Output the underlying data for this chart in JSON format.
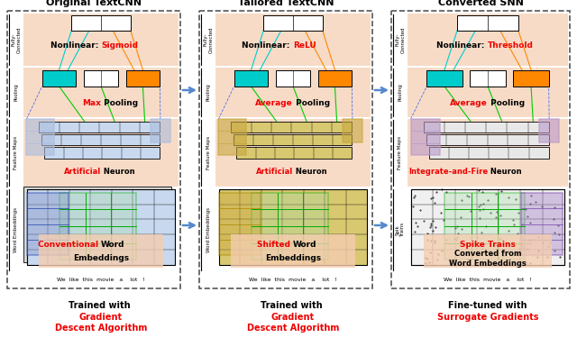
{
  "panels": [
    {
      "title": "Original TextCNN",
      "fc_keyword": "Sigmoid",
      "pool_keyword": "Max",
      "neuron_keyword": "Artificial",
      "embed_keyword": "Conventional",
      "embed_suffix": "Word\nEmbeddings",
      "embed_color": "#c8d8ee",
      "feature_highlight_color": "#aabcde",
      "bottom_line1": "Trained with ",
      "bottom_line1_red": "",
      "bottom_line2_red": "Gradient",
      "bottom_line3_red": "Descent",
      "bottom_line3_black": " Algorithm",
      "side_labels": [
        "Fully-\nConnected",
        "Pooling",
        "Feature Maps",
        "Word Embeddings"
      ]
    },
    {
      "title": "Tailored TextCNN",
      "fc_keyword": "ReLU",
      "pool_keyword": "Average",
      "neuron_keyword": "Artificial",
      "embed_keyword": "Shifted",
      "embed_suffix": "Word\nEmbeddings",
      "embed_color": "#d8c870",
      "feature_highlight_color": "#c8a840",
      "bottom_line1": "Trained with ",
      "bottom_line1_red": "",
      "bottom_line2_red": "Gradient",
      "bottom_line3_red": "Descent",
      "bottom_line3_black": " Algorithm",
      "side_labels": [
        "Fully-\nConnected",
        "Pooling",
        "Feature Maps",
        "Word Embeddings"
      ]
    },
    {
      "title": "Converted SNN",
      "fc_keyword": "Threshold",
      "pool_keyword": "Average",
      "neuron_keyword": "Integrate-and-Fire",
      "embed_keyword": "Spike Trains",
      "embed_suffix": "Converted from\nWord Embeddings",
      "embed_color": "#e8e8e8",
      "feature_highlight_color": "#b898c8",
      "bottom_line1": "Fine-tuned with",
      "bottom_line1_red": "",
      "bottom_line2_red": "Surrogate Gradients",
      "bottom_line3_red": "",
      "bottom_line3_black": "",
      "side_labels": [
        "Fully-\nConnected",
        "Pooling",
        "Feature Maps",
        "Spik\nTrains"
      ]
    }
  ],
  "highlight_salmon": "#f5cdb0",
  "sentence": "We  like  this  movie   a    lot   !",
  "arrow_color": "#5588cc",
  "pool_colors": [
    "#00cccc",
    "#ffffff",
    "#ff8800"
  ]
}
